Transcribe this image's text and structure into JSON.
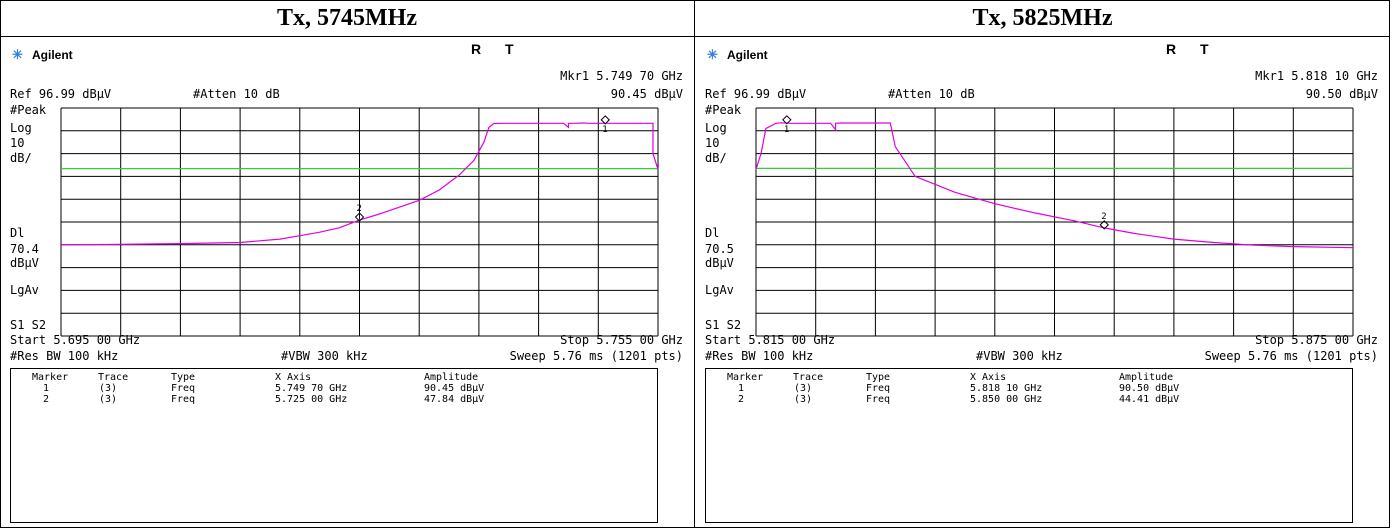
{
  "panels": [
    {
      "caption": "Tx, 5745MHz",
      "brand": "Agilent",
      "rt": "R T",
      "marker_readout": "Mkr1  5.749 70 GHz",
      "ref_level": "Ref 96.99 dBµV",
      "atten": "#Atten 10 dB",
      "marker_amp": "90.45 dBµV",
      "left_labels": {
        "peak": "#Peak",
        "log": "Log",
        "ten": "10",
        "dbdiv": "dB/",
        "dl": "Dl",
        "dl_value": "70.4",
        "dl_unit": "dBµV",
        "lgav": "LgAv",
        "s1s2": "S1  S2"
      },
      "start": "Start 5.695 00 GHz",
      "stop": "Stop 5.755 00 GHz",
      "res_bw": "#Res BW 100 kHz",
      "vbw": "#VBW 300 kHz",
      "sweep": "Sweep 5.76 ms (1201 pts)",
      "table": {
        "headers": [
          "Marker",
          "Trace",
          "Type",
          "X Axis",
          "Amplitude"
        ],
        "rows": [
          [
            "1",
            "(3)",
            "Freq",
            "5.749 70 GHz",
            "90.45 dBµV"
          ],
          [
            "2",
            "(3)",
            "Freq",
            "5.725 00 GHz",
            "47.84 dBµV"
          ]
        ]
      }
    },
    {
      "caption": "Tx, 5825MHz",
      "brand": "Agilent",
      "rt": "R T",
      "marker_readout": "Mkr1  5.818 10 GHz",
      "ref_level": "Ref 96.99 dBµV",
      "atten": "#Atten 10 dB",
      "marker_amp": "90.50 dBµV",
      "left_labels": {
        "peak": "#Peak",
        "log": "Log",
        "ten": "10",
        "dbdiv": "dB/",
        "dl": "Dl",
        "dl_value": "70.5",
        "dl_unit": "dBµV",
        "lgav": "LgAv",
        "s1s2": "S1  S2"
      },
      "start": "Start 5.815 00 GHz",
      "stop": "Stop 5.875 00 GHz",
      "res_bw": "#Res BW 100 kHz",
      "vbw": "#VBW 300 kHz",
      "sweep": "Sweep 5.76 ms (1201 pts)",
      "table": {
        "headers": [
          "Marker",
          "Trace",
          "Type",
          "X Axis",
          "Amplitude"
        ],
        "rows": [
          [
            "1",
            "(3)",
            "Freq",
            "5.818 10 GHz",
            "90.50 dBµV"
          ],
          [
            "2",
            "(3)",
            "Freq",
            "5.850 00 GHz",
            "44.41 dBµV"
          ]
        ]
      }
    }
  ],
  "colors": {
    "trace": "#e000e0",
    "display_line": "#33cc33",
    "grid": "#000000",
    "brand_icon": "#3b7fd6"
  },
  "chart_data": [
    {
      "type": "line",
      "x_unit": "GHz",
      "y_unit": "dBµV",
      "xlim": [
        5.695,
        5.755
      ],
      "ylim": [
        -3.01,
        96.99
      ],
      "grid": true,
      "display_line": 70.4,
      "series": [
        {
          "x": [
            5.695,
            5.701,
            5.707,
            5.713,
            5.717,
            5.719,
            5.721,
            5.723,
            5.725,
            5.727,
            5.729,
            5.731,
            5.733,
            5.735,
            5.7365,
            5.7375,
            5.738,
            5.7385,
            5.7395,
            5.7455,
            5.746,
            5.746,
            5.7465,
            5.7475,
            5.7475,
            5.748,
            5.7545,
            5.7545,
            5.755
          ],
          "y": [
            37.0,
            37.2,
            37.5,
            38.0,
            39.5,
            41.0,
            42.5,
            44.5,
            47.84,
            50.5,
            53.5,
            56.5,
            61.0,
            67.5,
            74.0,
            82.0,
            88.5,
            90.2,
            90.3,
            90.3,
            88.5,
            90.3,
            90.3,
            90.4,
            90.45,
            90.3,
            90.3,
            77.0,
            70.0
          ]
        }
      ],
      "markers": [
        {
          "id": "1",
          "x": 5.7497,
          "y": 90.45
        },
        {
          "id": "2",
          "x": 5.725,
          "y": 47.84
        }
      ]
    },
    {
      "type": "line",
      "x_unit": "GHz",
      "y_unit": "dBµV",
      "xlim": [
        5.815,
        5.875
      ],
      "ylim": [
        -3.01,
        96.99
      ],
      "grid": true,
      "display_line": 70.5,
      "series": [
        {
          "x": [
            5.815,
            5.8155,
            5.816,
            5.817,
            5.8175,
            5.8185,
            5.8225,
            5.823,
            5.823,
            5.8235,
            5.8285,
            5.829,
            5.831,
            5.835,
            5.839,
            5.843,
            5.847,
            5.85,
            5.853,
            5.857,
            5.861,
            5.865,
            5.869,
            5.875
          ],
          "y": [
            70.0,
            77.0,
            88.0,
            90.3,
            90.5,
            90.3,
            90.3,
            87.5,
            90.3,
            90.4,
            90.4,
            80.0,
            67.0,
            60.0,
            55.0,
            51.0,
            47.5,
            44.41,
            42.0,
            39.5,
            38.0,
            36.8,
            36.2,
            35.7
          ]
        }
      ],
      "markers": [
        {
          "id": "1",
          "x": 5.8181,
          "y": 90.5
        },
        {
          "id": "2",
          "x": 5.85,
          "y": 44.41
        }
      ]
    }
  ]
}
